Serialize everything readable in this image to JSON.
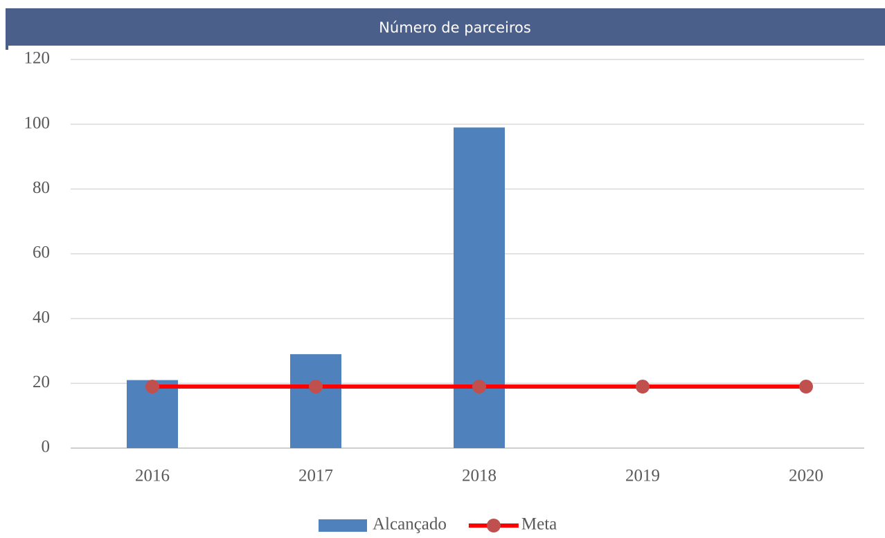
{
  "chart_data": {
    "type": "bar",
    "title": "Número de parceiros",
    "categories": [
      "2016",
      "2017",
      "2018",
      "2019",
      "2020"
    ],
    "series": [
      {
        "name": "Alcançado",
        "type": "bar",
        "color": "#4f81bd",
        "values": [
          21,
          29,
          99,
          null,
          null
        ]
      },
      {
        "name": "Meta",
        "type": "line",
        "color": "#ff0000",
        "marker_color": "#c0504d",
        "values": [
          19,
          19,
          19,
          19,
          19
        ]
      }
    ],
    "ylim": [
      0,
      120
    ],
    "yticks": [
      0,
      20,
      40,
      60,
      80,
      100,
      120
    ],
    "grid": true,
    "legend": "bottom"
  }
}
